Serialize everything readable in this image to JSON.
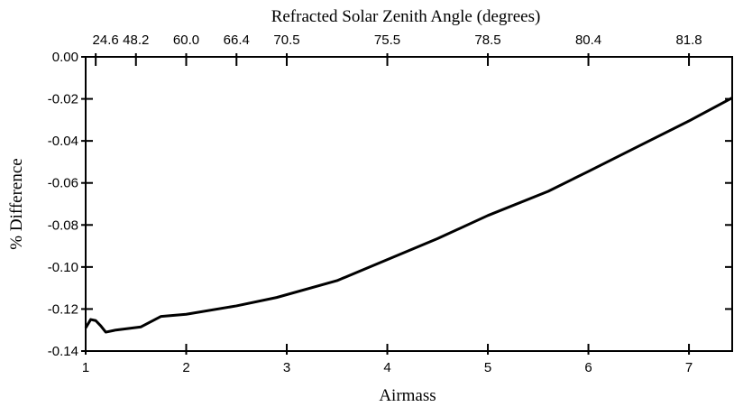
{
  "chart_data": {
    "type": "line",
    "xlabel": "Airmass",
    "ylabel": "% Difference",
    "x2label": "Refracted Solar Zenith Angle (degrees)",
    "xlim": [
      1,
      7.43
    ],
    "ylim": [
      -0.14,
      0
    ],
    "xticks": [
      1,
      2,
      3,
      4,
      5,
      6,
      7
    ],
    "yticks": [
      {
        "value": 0,
        "label": "0.00"
      },
      {
        "value": -0.02,
        "label": "-0.02"
      },
      {
        "value": -0.04,
        "label": "-0.04"
      },
      {
        "value": -0.06,
        "label": "-0.06"
      },
      {
        "value": -0.08,
        "label": "-0.08"
      },
      {
        "value": -0.1,
        "label": "-0.10"
      },
      {
        "value": -0.12,
        "label": "-0.12"
      },
      {
        "value": -0.14,
        "label": "-0.14"
      }
    ],
    "x2ticks": [
      {
        "value": 1.1,
        "label": "24.6"
      },
      {
        "value": 1.5,
        "label": "48.2"
      },
      {
        "value": 2,
        "label": "60.0"
      },
      {
        "value": 2.5,
        "label": "66.4"
      },
      {
        "value": 3,
        "label": "70.5"
      },
      {
        "value": 4,
        "label": "75.5"
      },
      {
        "value": 5,
        "label": "78.5"
      },
      {
        "value": 6,
        "label": "80.4"
      },
      {
        "value": 7,
        "label": "81.8"
      }
    ],
    "series": [
      {
        "color": "#000000",
        "x": [
          1.0,
          1.05,
          1.1,
          1.15,
          1.2,
          1.3,
          1.55,
          1.75,
          2.0,
          2.5,
          2.9,
          3.5,
          3.8,
          4.5,
          5.0,
          5.6,
          6.0,
          6.5,
          7.0,
          7.43
        ],
        "values": [
          -0.129,
          -0.125,
          -0.1255,
          -0.128,
          -0.131,
          -0.13,
          -0.1285,
          -0.1235,
          -0.1225,
          -0.1185,
          -0.1145,
          -0.1065,
          -0.1005,
          -0.0865,
          -0.0755,
          -0.064,
          -0.0545,
          -0.0425,
          -0.0305,
          -0.0195
        ]
      }
    ]
  }
}
